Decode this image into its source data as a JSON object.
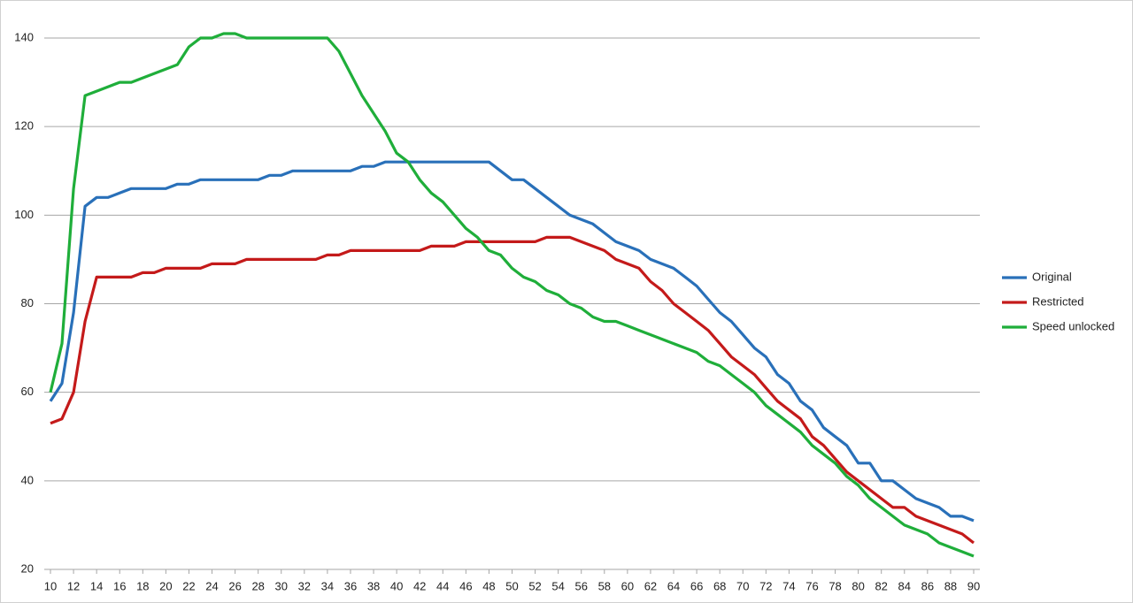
{
  "chart_data": {
    "type": "line",
    "x": [
      10,
      11,
      12,
      13,
      14,
      15,
      16,
      17,
      18,
      19,
      20,
      21,
      22,
      23,
      24,
      25,
      26,
      27,
      28,
      29,
      30,
      31,
      32,
      33,
      34,
      35,
      36,
      37,
      38,
      39,
      40,
      41,
      42,
      43,
      44,
      45,
      46,
      47,
      48,
      49,
      50,
      51,
      52,
      53,
      54,
      55,
      56,
      57,
      58,
      59,
      60,
      61,
      62,
      63,
      64,
      65,
      66,
      67,
      68,
      69,
      70,
      71,
      72,
      73,
      74,
      75,
      76,
      77,
      78,
      79,
      80,
      81,
      82,
      83,
      84,
      85,
      86,
      87,
      88,
      89,
      90
    ],
    "series": [
      {
        "name": "Original",
        "color": "#2970b9",
        "values": [
          58,
          62,
          78,
          102,
          104,
          104,
          105,
          106,
          106,
          106,
          106,
          107,
          107,
          108,
          108,
          108,
          108,
          108,
          108,
          109,
          109,
          110,
          110,
          110,
          110,
          110,
          110,
          111,
          111,
          112,
          112,
          112,
          112,
          112,
          112,
          112,
          112,
          112,
          112,
          110,
          108,
          108,
          106,
          104,
          102,
          100,
          99,
          98,
          96,
          94,
          93,
          92,
          90,
          89,
          88,
          86,
          84,
          81,
          78,
          76,
          73,
          70,
          68,
          64,
          62,
          58,
          56,
          52,
          50,
          48,
          44,
          44,
          40,
          40,
          38,
          36,
          35,
          34,
          32,
          32,
          31
        ]
      },
      {
        "name": "Restricted",
        "color": "#c41a1a",
        "values": [
          53,
          54,
          60,
          76,
          86,
          86,
          86,
          86,
          87,
          87,
          88,
          88,
          88,
          88,
          89,
          89,
          89,
          90,
          90,
          90,
          90,
          90,
          90,
          90,
          91,
          91,
          92,
          92,
          92,
          92,
          92,
          92,
          92,
          93,
          93,
          93,
          94,
          94,
          94,
          94,
          94,
          94,
          94,
          95,
          95,
          95,
          94,
          93,
          92,
          90,
          89,
          88,
          85,
          83,
          80,
          78,
          76,
          74,
          71,
          68,
          66,
          64,
          61,
          58,
          56,
          54,
          50,
          48,
          45,
          42,
          40,
          38,
          36,
          34,
          34,
          32,
          31,
          30,
          29,
          28,
          26
        ]
      },
      {
        "name": "Speed unlocked",
        "color": "#1fae3a",
        "values": [
          60,
          71,
          106,
          127,
          128,
          129,
          130,
          130,
          131,
          132,
          133,
          134,
          138,
          140,
          140,
          141,
          141,
          140,
          140,
          140,
          140,
          140,
          140,
          140,
          140,
          137,
          132,
          127,
          123,
          119,
          114,
          112,
          108,
          105,
          103,
          100,
          97,
          95,
          92,
          91,
          88,
          86,
          85,
          83,
          82,
          80,
          79,
          77,
          76,
          76,
          75,
          74,
          73,
          72,
          71,
          70,
          69,
          67,
          66,
          64,
          62,
          60,
          57,
          55,
          53,
          51,
          48,
          46,
          44,
          41,
          39,
          36,
          34,
          32,
          30,
          29,
          28,
          26,
          25,
          24,
          23
        ]
      }
    ],
    "xlim": [
      10,
      90
    ],
    "xticks": [
      10,
      12,
      14,
      16,
      18,
      20,
      22,
      24,
      26,
      28,
      30,
      32,
      34,
      36,
      38,
      40,
      42,
      44,
      46,
      48,
      50,
      52,
      54,
      56,
      58,
      60,
      62,
      64,
      66,
      68,
      70,
      72,
      74,
      76,
      78,
      80,
      82,
      84,
      86,
      88,
      90
    ],
    "ylim": [
      20,
      140
    ],
    "yticks": [
      20,
      40,
      60,
      80,
      100,
      120,
      140
    ],
    "grid": true,
    "legend": "right"
  }
}
